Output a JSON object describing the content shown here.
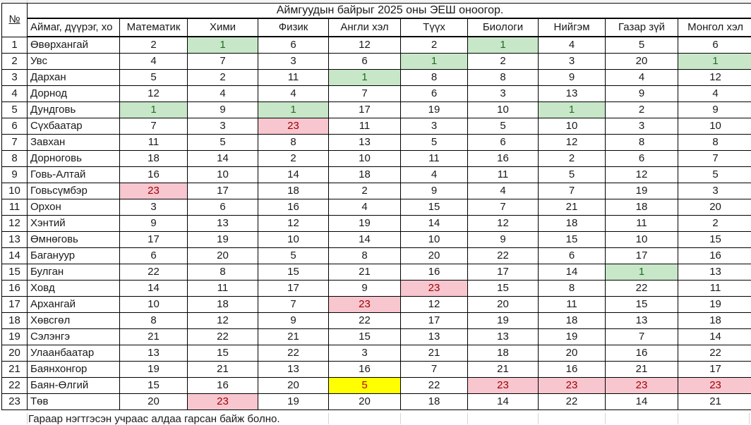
{
  "header": {
    "title": "Аймгуудын байрыг 2025 оны ЭЕШ оноогор.",
    "no_col": "№",
    "name_col": "Аймаг, дүүрэг, хо",
    "subjects": [
      "Математик",
      "Хими",
      "Физик",
      "Англи хэл",
      "Түүх",
      "Биологи",
      "Нийгэм",
      "Газар зүй",
      "Монгол хэл"
    ]
  },
  "rows": [
    {
      "no": 1,
      "name": "Өвөрхангай",
      "values": [
        2,
        1,
        6,
        12,
        2,
        1,
        4,
        5,
        6
      ],
      "marks": [
        "",
        "green",
        "",
        "",
        "",
        "green",
        "",
        "",
        ""
      ]
    },
    {
      "no": 2,
      "name": "Увс",
      "values": [
        4,
        7,
        3,
        6,
        1,
        2,
        3,
        20,
        1
      ],
      "marks": [
        "",
        "",
        "",
        "",
        "green",
        "",
        "",
        "",
        "green"
      ]
    },
    {
      "no": 3,
      "name": "Дархан",
      "values": [
        5,
        2,
        11,
        1,
        8,
        8,
        9,
        4,
        12
      ],
      "marks": [
        "",
        "",
        "",
        "green",
        "",
        "",
        "",
        "",
        ""
      ]
    },
    {
      "no": 4,
      "name": "Дорнод",
      "values": [
        12,
        4,
        4,
        7,
        6,
        3,
        13,
        9,
        4
      ],
      "marks": [
        "",
        "",
        "",
        "",
        "",
        "",
        "",
        "",
        ""
      ]
    },
    {
      "no": 5,
      "name": "Дундговь",
      "values": [
        1,
        9,
        1,
        17,
        19,
        10,
        1,
        2,
        9
      ],
      "marks": [
        "green",
        "",
        "green",
        "",
        "",
        "",
        "green",
        "",
        ""
      ]
    },
    {
      "no": 6,
      "name": "Сүхбаатар",
      "values": [
        7,
        3,
        23,
        11,
        3,
        5,
        10,
        3,
        10
      ],
      "marks": [
        "",
        "",
        "pink",
        "",
        "",
        "",
        "",
        "",
        ""
      ]
    },
    {
      "no": 7,
      "name": "Завхан",
      "values": [
        11,
        5,
        8,
        13,
        5,
        6,
        12,
        8,
        8
      ],
      "marks": [
        "",
        "",
        "",
        "",
        "",
        "",
        "",
        "",
        ""
      ]
    },
    {
      "no": 8,
      "name": "Дорноговь",
      "values": [
        18,
        14,
        2,
        10,
        11,
        16,
        2,
        6,
        7
      ],
      "marks": [
        "",
        "",
        "",
        "",
        "",
        "",
        "",
        "",
        ""
      ]
    },
    {
      "no": 9,
      "name": "Говь-Алтай",
      "values": [
        16,
        10,
        14,
        18,
        4,
        11,
        5,
        12,
        5
      ],
      "marks": [
        "",
        "",
        "",
        "",
        "",
        "",
        "",
        "",
        ""
      ]
    },
    {
      "no": 10,
      "name": "Говьсүмбэр",
      "values": [
        23,
        17,
        18,
        2,
        9,
        4,
        7,
        19,
        3
      ],
      "marks": [
        "pink",
        "",
        "",
        "",
        "",
        "",
        "",
        "",
        ""
      ]
    },
    {
      "no": 11,
      "name": "Орхон",
      "values": [
        3,
        6,
        16,
        4,
        15,
        7,
        21,
        18,
        20
      ],
      "marks": [
        "",
        "",
        "",
        "",
        "",
        "",
        "",
        "",
        ""
      ]
    },
    {
      "no": 12,
      "name": "Хэнтий",
      "values": [
        9,
        13,
        12,
        19,
        14,
        12,
        18,
        11,
        2
      ],
      "marks": [
        "",
        "",
        "",
        "",
        "",
        "",
        "",
        "",
        ""
      ]
    },
    {
      "no": 13,
      "name": "Өмнөговь",
      "values": [
        17,
        19,
        10,
        14,
        10,
        9,
        15,
        10,
        15
      ],
      "marks": [
        "",
        "",
        "",
        "",
        "",
        "",
        "",
        "",
        ""
      ]
    },
    {
      "no": 14,
      "name": "Багануур",
      "values": [
        6,
        20,
        5,
        8,
        20,
        22,
        6,
        17,
        16
      ],
      "marks": [
        "",
        "",
        "",
        "",
        "",
        "",
        "",
        "",
        ""
      ]
    },
    {
      "no": 15,
      "name": "Булган",
      "values": [
        22,
        8,
        15,
        21,
        16,
        17,
        14,
        1,
        13
      ],
      "marks": [
        "",
        "",
        "",
        "",
        "",
        "",
        "",
        "green",
        ""
      ]
    },
    {
      "no": 16,
      "name": "Ховд",
      "values": [
        14,
        11,
        17,
        9,
        23,
        15,
        8,
        22,
        11
      ],
      "marks": [
        "",
        "",
        "",
        "",
        "pink",
        "",
        "",
        "",
        ""
      ]
    },
    {
      "no": 17,
      "name": "Архангай",
      "values": [
        10,
        18,
        7,
        23,
        12,
        20,
        11,
        15,
        19
      ],
      "marks": [
        "",
        "",
        "",
        "pink",
        "",
        "",
        "",
        "",
        ""
      ]
    },
    {
      "no": 18,
      "name": "Хөвсгөл",
      "values": [
        8,
        12,
        9,
        22,
        17,
        19,
        18,
        13,
        18
      ],
      "marks": [
        "",
        "",
        "",
        "",
        "",
        "",
        "",
        "",
        ""
      ]
    },
    {
      "no": 19,
      "name": "Сэлэнгэ",
      "values": [
        21,
        22,
        21,
        15,
        13,
        13,
        19,
        7,
        14
      ],
      "marks": [
        "",
        "",
        "",
        "",
        "",
        "",
        "",
        "",
        ""
      ]
    },
    {
      "no": 20,
      "name": "Улаанбаатар",
      "values": [
        13,
        15,
        22,
        3,
        21,
        18,
        20,
        16,
        22
      ],
      "marks": [
        "",
        "",
        "",
        "",
        "",
        "",
        "",
        "",
        ""
      ]
    },
    {
      "no": 21,
      "name": "Баянхонгор",
      "values": [
        19,
        21,
        13,
        16,
        7,
        21,
        16,
        21,
        17
      ],
      "marks": [
        "",
        "",
        "",
        "",
        "",
        "",
        "",
        "",
        ""
      ]
    },
    {
      "no": 22,
      "name": "Баян-Өлгий",
      "values": [
        15,
        16,
        20,
        5,
        22,
        23,
        23,
        23,
        23
      ],
      "marks": [
        "",
        "",
        "",
        "yellow",
        "",
        "pink",
        "pink",
        "pink",
        "pink"
      ]
    },
    {
      "no": 23,
      "name": "Төв",
      "values": [
        20,
        23,
        19,
        20,
        18,
        14,
        22,
        14,
        21
      ],
      "marks": [
        "",
        "pink",
        "",
        "",
        "",
        "",
        "",
        "",
        ""
      ]
    }
  ],
  "footer": {
    "note": "Гараар нэгтгэсэн учраас алдаа гарсан байж болно."
  },
  "colors": {
    "highlight_green_bg": "#c7e7c8",
    "highlight_green_text": "#226b22",
    "highlight_pink_bg": "#f8c6ce",
    "highlight_pink_text": "#9c0006",
    "highlight_yellow_bg": "#ffff00",
    "highlight_yellow_text": "#c00000",
    "table_border": "#000000",
    "faint_grid": "#d4d4d4"
  }
}
